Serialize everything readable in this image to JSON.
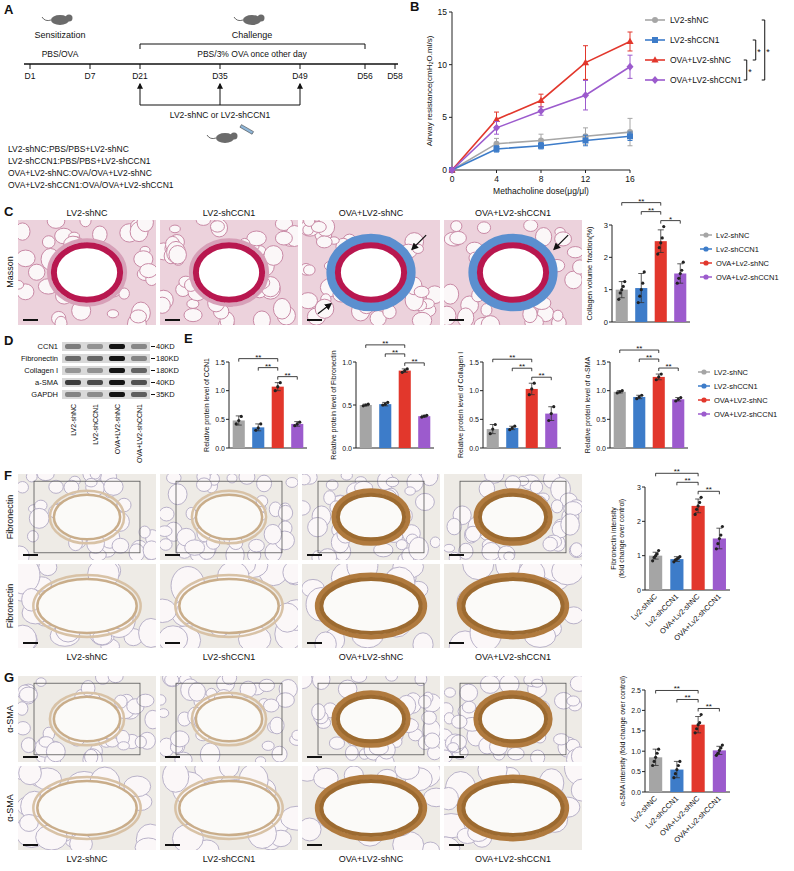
{
  "letters": [
    "A",
    "B",
    "C",
    "D",
    "E",
    "F",
    "G"
  ],
  "diagram": {
    "sensitization": "Sensitization",
    "challenge": "Challenge",
    "sensitization_agent": "PBS/OVA",
    "challenge_agent": "PBS/3% OVA once other day",
    "days": [
      "D1",
      "D7",
      "D21",
      "D35",
      "D49",
      "D56",
      "D58"
    ],
    "treatment": "LV2-shNC or LV2-shCCN1",
    "groups": [
      "LV2-shNC:PBS/PBS+LV2-shNC",
      "LV2-shCCN1:PBS/PBS+LV2-shCCN1",
      "OVA+LV2-shNC:OVA/OVA+LV2-shNC",
      "OVA+LV2-shCCN1:OVA/OVA+LV2-shCCN1"
    ]
  },
  "images": {
    "C": {
      "stain": "Masson",
      "titles": [
        "LV2-shNC",
        "LV2-shCCN1",
        "OVA+LV2-shNC",
        "OVA+LV2-shCCN1"
      ]
    },
    "F": {
      "stain": "Fibronectin",
      "labels": [
        "LV2-shNC",
        "LV2-shCCN1",
        "OVA+LV2-shNC",
        "OVA+LV2-shCCN1"
      ]
    },
    "G": {
      "stain": "α-SMA",
      "labels": [
        "LV2-shNC",
        "LV2-shCCN1",
        "OVA+LV2-shNC",
        "OVA+LV2-shCCN1"
      ]
    }
  },
  "blot": {
    "proteins": [
      "CCN1",
      "Fibronectin",
      "Collagen I",
      "a-SMA",
      "GAPDH"
    ],
    "sizes": [
      "40KD",
      "180KD",
      "180KD",
      "40KD",
      "35KD"
    ],
    "lanes": [
      "LV2-shNC",
      "LV2-shCCN1",
      "OVA+LV2-shNC",
      "OVA+LV2-shCCN1"
    ]
  },
  "chart_data": [
    {
      "type": "line",
      "x_label": "Methacholine dose(μg/μl)",
      "y_label": "Airway resistance(cmH₂O.ml/s)",
      "x": [
        0,
        4,
        8,
        12,
        16
      ],
      "xlim": [
        0,
        16
      ],
      "xticks": [
        0,
        4,
        8,
        12,
        16
      ],
      "ylim": [
        0,
        15
      ],
      "yticks": [
        0,
        5,
        10,
        15
      ],
      "legend": "right",
      "series": [
        {
          "name": "LV2-shNC",
          "color": "#a6a6a6",
          "marker": "circle",
          "values": [
            0,
            2.5,
            2.8,
            3.2,
            3.6
          ],
          "errors": [
            0,
            0.5,
            0.6,
            0.8,
            1.3
          ]
        },
        {
          "name": "LV2-shCCN1",
          "color": "#3d7cc9",
          "marker": "square",
          "values": [
            0,
            2.0,
            2.3,
            2.8,
            3.2
          ],
          "errors": [
            0,
            0.3,
            0.3,
            0.5,
            0.4
          ]
        },
        {
          "name": "OVA+LV2-shNC",
          "color": "#e2372c",
          "marker": "triangle",
          "values": [
            0,
            4.8,
            6.6,
            10.2,
            12.2
          ],
          "errors": [
            0,
            0.7,
            0.6,
            1.6,
            0.9
          ]
        },
        {
          "name": "OVA+LV2-shCCN1",
          "color": "#9c5bcd",
          "marker": "diamond",
          "values": [
            0,
            4.0,
            5.6,
            7.1,
            9.8
          ],
          "errors": [
            0,
            0.6,
            0.4,
            1.4,
            1.1
          ]
        }
      ],
      "comparisons": [
        {
          "pair": [
            2,
            3
          ],
          "label": "*"
        },
        {
          "pair": [
            1,
            2
          ],
          "label": "*"
        },
        {
          "pair": [
            0,
            3
          ],
          "label": "*"
        }
      ]
    },
    {
      "type": "bar",
      "y_label": "Collagen volume fraction(%)",
      "categories": [
        "Lv2-shNC",
        "Lv2-shCCN1",
        "OVA+Lv2-shNC",
        "OVA+Lv2-shCCN1"
      ],
      "colors": [
        "#a5a5a5",
        "#3d7cc9",
        "#e2372c",
        "#9c5bcd"
      ],
      "values": [
        1.0,
        1.05,
        2.5,
        1.5
      ],
      "errors": [
        0.25,
        0.45,
        0.35,
        0.3
      ],
      "points": [
        [
          0.7,
          0.9,
          1.0,
          1.1,
          1.25
        ],
        [
          0.6,
          0.8,
          1.0,
          1.2,
          1.55
        ],
        [
          2.1,
          2.3,
          2.45,
          2.6,
          2.95
        ],
        [
          1.2,
          1.35,
          1.5,
          1.6,
          1.85
        ]
      ],
      "ylim": [
        0,
        3
      ],
      "yticks": [
        0,
        1,
        2,
        3
      ],
      "tick_labels": "y",
      "legend": "right",
      "comparisons": [
        {
          "pair": [
            2,
            3
          ],
          "label": "*"
        },
        {
          "pair": [
            1,
            2
          ],
          "label": "**"
        },
        {
          "pair": [
            0,
            2
          ],
          "label": "**"
        }
      ]
    },
    {
      "type": "bar",
      "y_label": "Relative protein level of CCN1",
      "categories": [
        null,
        null,
        null,
        null
      ],
      "colors": [
        "#a5a5a5",
        "#3d7cc9",
        "#e2372c",
        "#9c5bcd"
      ],
      "values": [
        0.48,
        0.36,
        1.07,
        0.42
      ],
      "errors": [
        0.08,
        0.06,
        0.07,
        0.04
      ],
      "points": [
        [
          0.42,
          0.48,
          0.55
        ],
        [
          0.31,
          0.35,
          0.42
        ],
        [
          1.0,
          1.07,
          1.14
        ],
        [
          0.39,
          0.42,
          0.45
        ]
      ],
      "ylim": [
        0,
        1.5
      ],
      "yticks": [
        {
          "value": 0,
          "label": "0.0"
        },
        {
          "value": 0.5,
          "label": "0.5"
        },
        {
          "value": 1,
          "label": "1.0"
        },
        {
          "value": 1.5,
          "label": "1.5"
        }
      ],
      "tick_labels": "y",
      "comparisons": [
        {
          "pair": [
            2,
            3
          ],
          "label": "**"
        },
        {
          "pair": [
            1,
            2
          ],
          "label": "**"
        },
        {
          "pair": [
            0,
            2
          ],
          "label": "**"
        }
      ]
    },
    {
      "type": "bar",
      "y_label": "Relative protein level of Fibronectin",
      "categories": [
        null,
        null,
        null,
        null
      ],
      "colors": [
        "#a5a5a5",
        "#3d7cc9",
        "#e2372c",
        "#9c5bcd"
      ],
      "values": [
        0.5,
        0.51,
        0.9,
        0.37
      ],
      "errors": [
        0.01,
        0.02,
        0.02,
        0.01
      ],
      "points": [
        [
          0.49,
          0.5,
          0.51
        ],
        [
          0.5,
          0.51,
          0.53
        ],
        [
          0.88,
          0.9,
          0.92
        ],
        [
          0.36,
          0.37,
          0.38
        ]
      ],
      "ylim": [
        0,
        1
      ],
      "yticks": [
        {
          "value": 0,
          "label": "0.0"
        },
        {
          "value": 0.5,
          "label": "0.5"
        },
        {
          "value": 1,
          "label": "1.0"
        }
      ],
      "tick_labels": "y",
      "comparisons": [
        {
          "pair": [
            2,
            3
          ],
          "label": "**"
        },
        {
          "pair": [
            1,
            2
          ],
          "label": "**"
        },
        {
          "pair": [
            0,
            2
          ],
          "label": "**"
        }
      ]
    },
    {
      "type": "bar",
      "y_label": "Relative protein level of Collagen I",
      "categories": [
        null,
        null,
        null,
        null
      ],
      "colors": [
        "#a5a5a5",
        "#3d7cc9",
        "#e2372c",
        "#9c5bcd"
      ],
      "values": [
        0.33,
        0.35,
        1.03,
        0.6
      ],
      "errors": [
        0.08,
        0.03,
        0.1,
        0.12
      ],
      "points": [
        [
          0.25,
          0.33,
          0.41
        ],
        [
          0.32,
          0.35,
          0.38
        ],
        [
          0.93,
          1.03,
          1.13
        ],
        [
          0.48,
          0.6,
          0.72
        ]
      ],
      "ylim": [
        0,
        1.5
      ],
      "yticks": [
        {
          "value": 0,
          "label": "0.0"
        },
        {
          "value": 0.5,
          "label": "0.5"
        },
        {
          "value": 1,
          "label": "1.0"
        },
        {
          "value": 1.5,
          "label": "1.5"
        }
      ],
      "tick_labels": "y",
      "comparisons": [
        {
          "pair": [
            2,
            3
          ],
          "label": "**"
        },
        {
          "pair": [
            1,
            2
          ],
          "label": "**"
        },
        {
          "pair": [
            0,
            2
          ],
          "label": "**"
        }
      ]
    },
    {
      "type": "bar",
      "y_label": "Relative protein level of α-SMA",
      "categories": [
        "LV2-shNC",
        "LV2-shCCN1",
        "OVA+LV2-shNC",
        "OVA+LV2-shCCN1"
      ],
      "colors": [
        "#a5a5a5",
        "#3d7cc9",
        "#e2372c",
        "#9c5bcd"
      ],
      "values": [
        0.98,
        0.89,
        1.24,
        0.85
      ],
      "errors": [
        0.02,
        0.03,
        0.05,
        0.03
      ],
      "points": [
        [
          0.96,
          0.98,
          1.0
        ],
        [
          0.86,
          0.89,
          0.92
        ],
        [
          1.19,
          1.24,
          1.29
        ],
        [
          0.82,
          0.85,
          0.88
        ]
      ],
      "ylim": [
        0,
        1.5
      ],
      "yticks": [
        {
          "value": 0,
          "label": "0.0"
        },
        {
          "value": 0.5,
          "label": "0.5"
        },
        {
          "value": 1,
          "label": "1.0"
        },
        {
          "value": 1.5,
          "label": "1.5"
        }
      ],
      "tick_labels": "y",
      "legend": "right",
      "comparisons": [
        {
          "pair": [
            2,
            3
          ],
          "label": "**"
        },
        {
          "pair": [
            1,
            2
          ],
          "label": "**"
        },
        {
          "pair": [
            0,
            2
          ],
          "label": "**"
        }
      ]
    },
    {
      "type": "bar",
      "y_label": "Fibronectin intensity (fold change over control)",
      "categories": [
        "Lv2-shNC",
        "Lv2-shCCN1",
        "OVA+Lv2-shNC",
        "OVA+Lv2-shCCN1"
      ],
      "colors": [
        "#a5a5a5",
        "#3d7cc9",
        "#e2372c",
        "#9c5bcd"
      ],
      "values": [
        1.0,
        0.9,
        2.45,
        1.5
      ],
      "errors": [
        0.1,
        0.07,
        0.2,
        0.3
      ],
      "points": [
        [
          0.85,
          0.95,
          1.0,
          1.05,
          1.15
        ],
        [
          0.82,
          0.88,
          0.9,
          0.93,
          0.97
        ],
        [
          2.2,
          2.35,
          2.45,
          2.55,
          2.7
        ],
        [
          1.2,
          1.35,
          1.5,
          1.6,
          1.85
        ]
      ],
      "ylim": [
        0,
        3
      ],
      "yticks": [
        0,
        1,
        2,
        3
      ],
      "comparisons": [
        {
          "pair": [
            2,
            3
          ],
          "label": "**"
        },
        {
          "pair": [
            1,
            2
          ],
          "label": "**"
        },
        {
          "pair": [
            0,
            2
          ],
          "label": "**"
        }
      ]
    },
    {
      "type": "bar",
      "y_label": "α-SMA intensity (fold change over control)",
      "categories": [
        "Lv2-shNC",
        "Lv2-shCCN1",
        "OVA+Lv2-shNC",
        "OVA+Lv2-shCCN1"
      ],
      "colors": [
        "#a5a5a5",
        "#3d7cc9",
        "#e2372c",
        "#9c5bcd"
      ],
      "values": [
        0.85,
        0.55,
        1.65,
        1.02
      ],
      "errors": [
        0.2,
        0.2,
        0.2,
        0.1
      ],
      "points": [
        [
          0.65,
          0.75,
          0.85,
          0.95,
          1.05
        ],
        [
          0.35,
          0.45,
          0.55,
          0.65,
          0.75
        ],
        [
          1.45,
          1.55,
          1.65,
          1.7,
          1.9
        ],
        [
          0.9,
          0.95,
          1.02,
          1.08,
          1.15
        ]
      ],
      "ylim": [
        0,
        2.5
      ],
      "yticks": [
        {
          "value": 0,
          "label": "0.0"
        },
        {
          "value": 0.5,
          "label": "0.5"
        },
        {
          "value": 1,
          "label": "1.0"
        },
        {
          "value": 1.5,
          "label": "1.5"
        },
        {
          "value": 2,
          "label": "2.0"
        },
        {
          "value": 2.5,
          "label": "2.5"
        }
      ],
      "comparisons": [
        {
          "pair": [
            2,
            3
          ],
          "label": "**"
        },
        {
          "pair": [
            1,
            2
          ],
          "label": "**"
        },
        {
          "pair": [
            0,
            2
          ],
          "label": "**"
        }
      ]
    }
  ]
}
